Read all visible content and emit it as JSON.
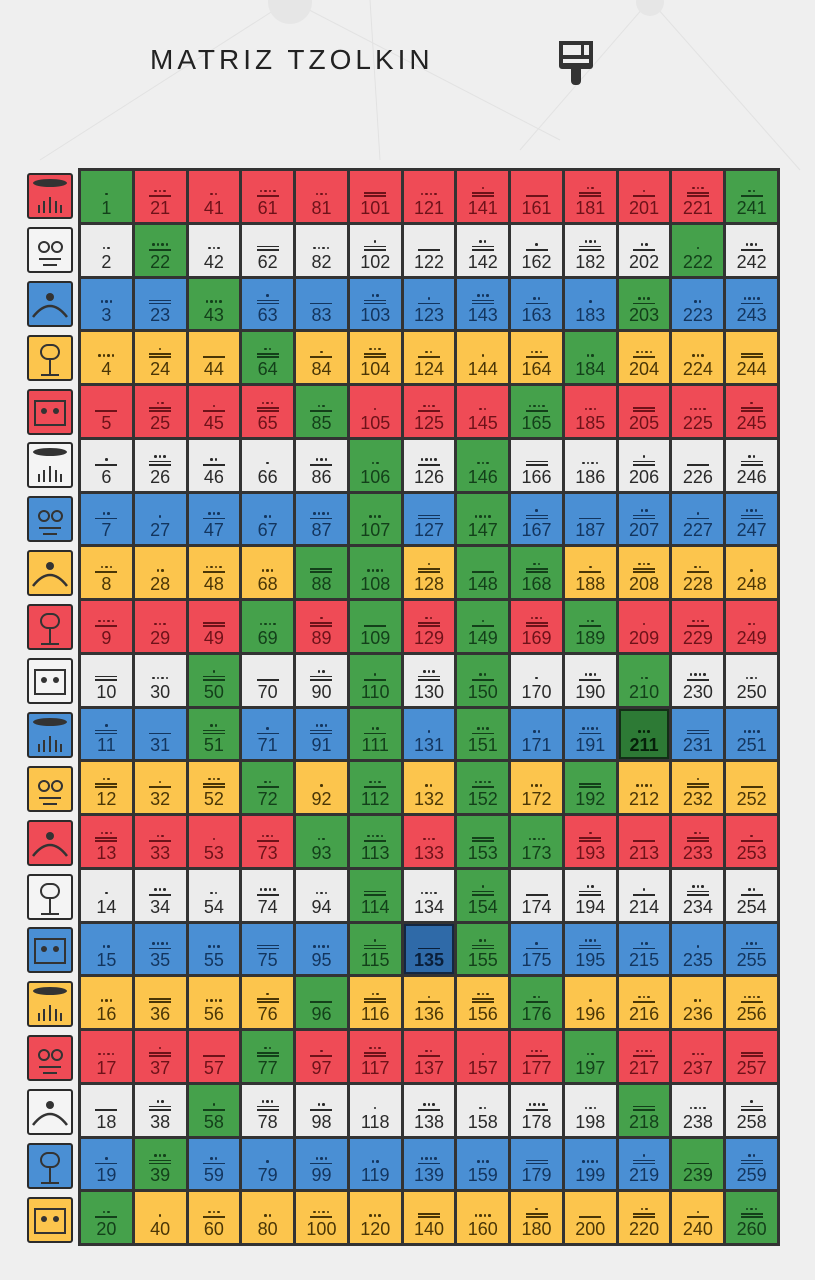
{
  "header": {
    "title": "MATRIZ TZOLKIN",
    "brush_icon": "paint-brush-icon"
  },
  "palette": {
    "R": "#ef4b56",
    "W": "#ececec",
    "B": "#4a8fd4",
    "Y": "#fcc54d",
    "G": "#45a14b"
  },
  "highlighted": [
    135,
    211
  ],
  "seals": [
    {
      "name": "red-dragon",
      "color": "R"
    },
    {
      "name": "white-wind",
      "color": "W"
    },
    {
      "name": "blue-night",
      "color": "B"
    },
    {
      "name": "yellow-seed",
      "color": "Y"
    },
    {
      "name": "red-serpent",
      "color": "R"
    },
    {
      "name": "white-worldbridger",
      "color": "W"
    },
    {
      "name": "blue-hand",
      "color": "B"
    },
    {
      "name": "yellow-star",
      "color": "Y"
    },
    {
      "name": "red-moon",
      "color": "R"
    },
    {
      "name": "white-dog",
      "color": "W"
    },
    {
      "name": "blue-monkey",
      "color": "B"
    },
    {
      "name": "yellow-human",
      "color": "Y"
    },
    {
      "name": "red-skywalker",
      "color": "R"
    },
    {
      "name": "white-wizard",
      "color": "W"
    },
    {
      "name": "blue-eagle",
      "color": "B"
    },
    {
      "name": "yellow-warrior",
      "color": "Y"
    },
    {
      "name": "red-earth",
      "color": "R"
    },
    {
      "name": "white-mirror",
      "color": "W"
    },
    {
      "name": "blue-storm",
      "color": "B"
    },
    {
      "name": "yellow-sun",
      "color": "Y"
    }
  ],
  "rows": [
    {
      "numbers": [
        1,
        21,
        41,
        61,
        81,
        101,
        121,
        141,
        161,
        181,
        201,
        221,
        241
      ],
      "colors": "GRRRRRRRRRRRG"
    },
    {
      "numbers": [
        2,
        22,
        42,
        62,
        82,
        102,
        122,
        142,
        162,
        182,
        202,
        222,
        242
      ],
      "colors": "WGWWWWWWWWWGW"
    },
    {
      "numbers": [
        3,
        23,
        43,
        63,
        83,
        103,
        123,
        143,
        163,
        183,
        203,
        223,
        243
      ],
      "colors": "BBGBBBBBBBGBB"
    },
    {
      "numbers": [
        4,
        24,
        44,
        64,
        84,
        104,
        124,
        144,
        164,
        184,
        204,
        224,
        244
      ],
      "colors": "YYYGYYYYYGYYY"
    },
    {
      "numbers": [
        5,
        25,
        45,
        65,
        85,
        105,
        125,
        145,
        165,
        185,
        205,
        225,
        245
      ],
      "colors": "RRRRGRRRGRRRR"
    },
    {
      "numbers": [
        6,
        26,
        46,
        66,
        86,
        106,
        126,
        146,
        166,
        186,
        206,
        226,
        246
      ],
      "colors": "WWWWWGWGWWWWW"
    },
    {
      "numbers": [
        7,
        27,
        47,
        67,
        87,
        107,
        127,
        147,
        167,
        187,
        207,
        227,
        247
      ],
      "colors": "BBBBBGBGBBBBB"
    },
    {
      "numbers": [
        8,
        28,
        48,
        68,
        88,
        108,
        128,
        148,
        168,
        188,
        208,
        228,
        248
      ],
      "colors": "YYYYGGYGGYYYY"
    },
    {
      "numbers": [
        9,
        29,
        49,
        69,
        89,
        109,
        129,
        149,
        169,
        189,
        209,
        229,
        249
      ],
      "colors": "RRRGRGRGRGRRR"
    },
    {
      "numbers": [
        10,
        30,
        50,
        70,
        90,
        110,
        130,
        150,
        170,
        190,
        210,
        230,
        250
      ],
      "colors": "WWGWWGWGWWGWW"
    },
    {
      "numbers": [
        11,
        31,
        51,
        71,
        91,
        111,
        131,
        151,
        171,
        191,
        211,
        231,
        251
      ],
      "colors": "BBGBBGBGBBGBB"
    },
    {
      "numbers": [
        12,
        32,
        52,
        72,
        92,
        112,
        132,
        152,
        172,
        192,
        212,
        232,
        252
      ],
      "colors": "YYYGYGYGYGYYY"
    },
    {
      "numbers": [
        13,
        33,
        53,
        73,
        93,
        113,
        133,
        153,
        173,
        193,
        213,
        233,
        253
      ],
      "colors": "RRRRGGRGGRRRR"
    },
    {
      "numbers": [
        14,
        34,
        54,
        74,
        94,
        114,
        134,
        154,
        174,
        194,
        214,
        234,
        254
      ],
      "colors": "WWWWWGWGWWWWW"
    },
    {
      "numbers": [
        15,
        35,
        55,
        75,
        95,
        115,
        135,
        155,
        175,
        195,
        215,
        235,
        255
      ],
      "colors": "BBBBBGBGBBBBB"
    },
    {
      "numbers": [
        16,
        36,
        56,
        76,
        96,
        116,
        136,
        156,
        176,
        196,
        216,
        236,
        256
      ],
      "colors": "YYYYGYYYGYYYY"
    },
    {
      "numbers": [
        17,
        37,
        57,
        77,
        97,
        117,
        137,
        157,
        177,
        197,
        217,
        237,
        257
      ],
      "colors": "RRRGRRRRRGRRR"
    },
    {
      "numbers": [
        18,
        38,
        58,
        78,
        98,
        118,
        138,
        158,
        178,
        198,
        218,
        238,
        258
      ],
      "colors": "WWGWWWWWWWGWW"
    },
    {
      "numbers": [
        19,
        39,
        59,
        79,
        99,
        119,
        139,
        159,
        179,
        199,
        219,
        239,
        259
      ],
      "colors": "BGBBBBBBBBBGB"
    },
    {
      "numbers": [
        20,
        40,
        60,
        80,
        100,
        120,
        140,
        160,
        180,
        200,
        220,
        240,
        260
      ],
      "colors": "GYYYYYYYYYYYG"
    }
  ]
}
